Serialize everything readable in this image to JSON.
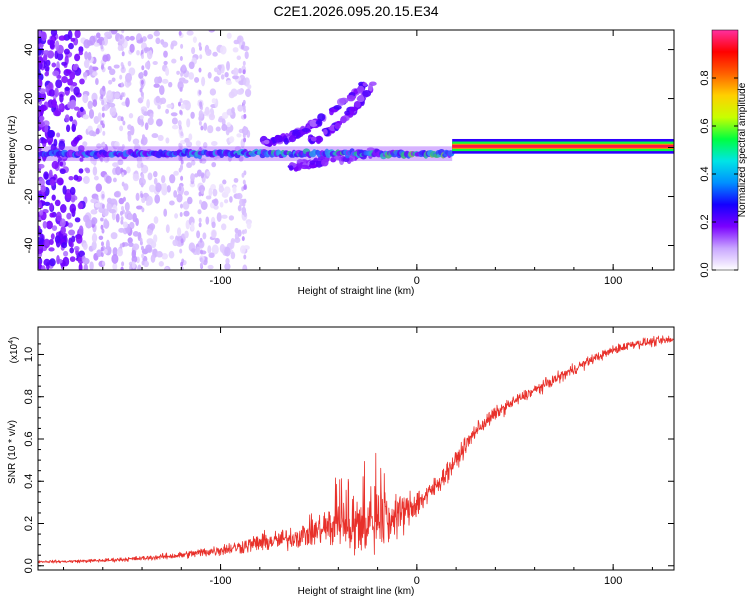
{
  "title": "C2E1.2026.095.20.15.E34",
  "chart_data": [
    {
      "type": "heatmap",
      "name": "spectrogram",
      "xlabel": "Height of straight line (km)",
      "ylabel": "Frequency (Hz)",
      "xlim": [
        -193,
        131
      ],
      "ylim": [
        -50,
        48
      ],
      "xticks": [
        -100,
        0,
        100
      ],
      "yticks": [
        -40,
        -20,
        0,
        20,
        40
      ],
      "colorbar": {
        "label": "Normalized spectral amplitude",
        "range": [
          0,
          1
        ],
        "ticks": [
          "0.0",
          "0.2",
          "0.4",
          "0.6",
          "0.8"
        ],
        "stops": [
          "#ffffff",
          "#c9a6ff",
          "#7a00ff",
          "#1400ff",
          "#0090ff",
          "#00e5e5",
          "#00ff40",
          "#c8ff00",
          "#ffd000",
          "#ff6000",
          "#ff0000",
          "#ff2fa0"
        ]
      },
      "features": {
        "carrier_band": {
          "x": [
            18,
            131
          ],
          "freq_hz": 0.5,
          "halfwidth_hz": 3,
          "amplitude": 0.85
        },
        "main_trace": {
          "x": [
            -193,
            18
          ],
          "freq_hz": -2.5,
          "amplitude_range": [
            0.15,
            0.55
          ]
        },
        "upper_branch_1": {
          "x": [
            -80,
            -25
          ],
          "freq_hz": [
            2,
            28
          ]
        },
        "upper_branch_2": {
          "x": [
            -55,
            -22
          ],
          "freq_hz": [
            3,
            26
          ]
        },
        "lower_branch": {
          "x": [
            -65,
            -20
          ],
          "freq_hz": [
            -8,
            -2
          ]
        },
        "noise_region": {
          "x": [
            -193,
            -85
          ],
          "freq_hz": [
            -50,
            48
          ]
        }
      }
    },
    {
      "type": "line",
      "name": "snr",
      "xlabel": "Height of straight line (km)",
      "ylabel": "SNR (10 * v/v)",
      "yscale_label": "(x10",
      "yscale_exponent": "4",
      "yscale_suffix": ")",
      "xlim": [
        -193,
        131
      ],
      "ylim": [
        -0.02,
        1.13
      ],
      "xticks": [
        -100,
        0,
        100
      ],
      "yticks": [
        0.0,
        0.2,
        0.4,
        0.6,
        0.8,
        1.0
      ],
      "color": "#e8302a",
      "series": [
        {
          "name": "SNR",
          "x": [
            -193,
            -180,
            -160,
            -140,
            -120,
            -100,
            -90,
            -80,
            -70,
            -60,
            -50,
            -40,
            -30,
            -20,
            -15,
            -10,
            -5,
            0,
            5,
            10,
            20,
            30,
            40,
            50,
            60,
            70,
            80,
            90,
            100,
            110,
            120,
            131
          ],
          "mean": [
            0.02,
            0.02,
            0.025,
            0.035,
            0.05,
            0.075,
            0.09,
            0.11,
            0.12,
            0.14,
            0.17,
            0.2,
            0.19,
            0.2,
            0.2,
            0.24,
            0.26,
            0.3,
            0.33,
            0.38,
            0.5,
            0.64,
            0.72,
            0.78,
            0.83,
            0.88,
            0.93,
            0.98,
            1.02,
            1.05,
            1.06,
            1.07
          ],
          "spread": [
            0.006,
            0.006,
            0.008,
            0.01,
            0.015,
            0.025,
            0.03,
            0.04,
            0.045,
            0.05,
            0.07,
            0.11,
            0.13,
            0.12,
            0.1,
            0.09,
            0.08,
            0.07,
            0.05,
            0.045,
            0.04,
            0.035,
            0.03,
            0.025,
            0.025,
            0.025,
            0.025,
            0.02,
            0.02,
            0.02,
            0.02,
            0.02
          ]
        }
      ]
    }
  ]
}
